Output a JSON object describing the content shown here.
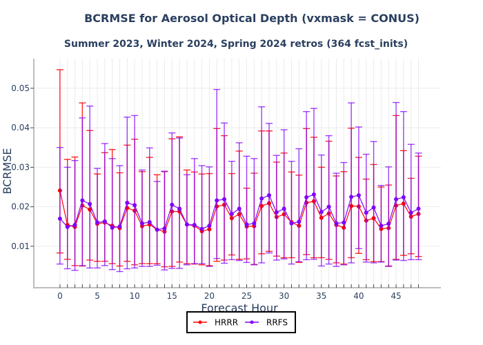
{
  "chart_data": {
    "type": "line",
    "title": "BCRMSE for Aerosol Optical Depth (vxmask = CONUS)",
    "subtitle": "Summer 2023, Winter 2024, Spring 2024 retros (364 fcst_inits)",
    "xlabel": "Forecast Hour",
    "ylabel": "BCRMSE",
    "xlim": [
      -3.5,
      51
    ],
    "ylim": [
      -0.0005,
      0.0575
    ],
    "xticks": [
      0,
      5,
      10,
      15,
      20,
      25,
      30,
      35,
      40,
      45
    ],
    "xtick_labels": [
      "0",
      "5",
      "10",
      "15",
      "20",
      "25",
      "30",
      "35",
      "40",
      "45"
    ],
    "yticks": [
      0.01,
      0.02,
      0.03,
      0.04,
      0.05
    ],
    "ytick_labels": [
      "0.01",
      "0.02",
      "0.03",
      "0.04",
      "0.05"
    ],
    "grid": true,
    "legend_position": "bottom-center",
    "x": [
      0,
      1,
      2,
      3,
      4,
      5,
      6,
      7,
      8,
      9,
      10,
      11,
      12,
      13,
      14,
      15,
      16,
      17,
      18,
      19,
      20,
      21,
      22,
      23,
      24,
      25,
      26,
      27,
      28,
      29,
      30,
      31,
      32,
      33,
      34,
      35,
      36,
      37,
      38,
      39,
      40,
      41,
      42,
      43,
      44,
      45,
      46,
      47,
      48
    ],
    "series": [
      {
        "name": "HRRR",
        "color": "#ff0000",
        "values": [
          0.0241,
          0.0154,
          0.0149,
          0.0203,
          0.0193,
          0.0157,
          0.016,
          0.0152,
          0.0146,
          0.0197,
          0.019,
          0.0151,
          0.0155,
          0.0142,
          0.0137,
          0.0188,
          0.0188,
          0.0155,
          0.0152,
          0.0138,
          0.0143,
          0.0201,
          0.0205,
          0.0171,
          0.0181,
          0.015,
          0.0151,
          0.0202,
          0.0209,
          0.0174,
          0.0181,
          0.0161,
          0.0152,
          0.021,
          0.0214,
          0.0172,
          0.0183,
          0.0154,
          0.0147,
          0.0202,
          0.0201,
          0.0165,
          0.0171,
          0.0144,
          0.0146,
          0.0203,
          0.0208,
          0.0175,
          0.0182
        ],
        "upper": [
          0.0547,
          0.032,
          0.0326,
          0.0463,
          0.0393,
          0.0283,
          0.0337,
          0.0345,
          0.0286,
          0.0356,
          0.0371,
          0.0289,
          0.0325,
          0.0281,
          0.0289,
          0.0372,
          0.0377,
          0.0293,
          0.0288,
          0.0283,
          0.0284,
          0.0398,
          0.038,
          0.0284,
          0.0341,
          0.0247,
          0.0285,
          0.0392,
          0.0392,
          0.0313,
          0.0336,
          0.0288,
          0.028,
          0.0398,
          0.0376,
          0.03,
          0.0366,
          0.0278,
          0.0289,
          0.0399,
          0.0325,
          0.027,
          0.0307,
          0.025,
          0.0255,
          0.0431,
          0.0342,
          0.0272,
          0.0328
        ],
        "lower": [
          0.0083,
          0.0067,
          0.0051,
          0.005,
          0.0065,
          0.0062,
          0.0062,
          0.0056,
          0.005,
          0.0062,
          0.0053,
          0.0056,
          0.0056,
          0.0056,
          0.0048,
          0.0049,
          0.006,
          0.0056,
          0.0055,
          0.0053,
          0.0051,
          0.0062,
          0.0065,
          0.0078,
          0.0067,
          0.0068,
          0.0054,
          0.0081,
          0.0087,
          0.0075,
          0.0071,
          0.0071,
          0.0059,
          0.0079,
          0.0071,
          0.0071,
          0.0067,
          0.0058,
          0.0055,
          0.0071,
          0.0082,
          0.0066,
          0.0061,
          0.0061,
          0.005,
          0.0067,
          0.0077,
          0.0081,
          0.0074
        ]
      },
      {
        "name": "RRFS",
        "color": "#8000ff",
        "values": [
          0.017,
          0.0149,
          0.0154,
          0.0216,
          0.0207,
          0.016,
          0.0163,
          0.0147,
          0.015,
          0.021,
          0.0204,
          0.0158,
          0.0161,
          0.0142,
          0.0145,
          0.0205,
          0.0195,
          0.0155,
          0.0154,
          0.0144,
          0.0152,
          0.0216,
          0.0219,
          0.0182,
          0.0195,
          0.0155,
          0.0158,
          0.0221,
          0.0229,
          0.0186,
          0.0195,
          0.0158,
          0.0162,
          0.0224,
          0.0231,
          0.0187,
          0.02,
          0.0158,
          0.016,
          0.0225,
          0.0229,
          0.0185,
          0.0198,
          0.0152,
          0.0157,
          0.0219,
          0.0224,
          0.0185,
          0.0195
        ],
        "upper": [
          0.035,
          0.03,
          0.0317,
          0.0425,
          0.0455,
          0.0297,
          0.036,
          0.0322,
          0.0304,
          0.0427,
          0.0431,
          0.0293,
          0.0349,
          0.0264,
          0.029,
          0.0387,
          0.0374,
          0.0281,
          0.0322,
          0.0304,
          0.0301,
          0.0497,
          0.0412,
          0.0315,
          0.0362,
          0.0328,
          0.0322,
          0.0453,
          0.0411,
          0.033,
          0.0395,
          0.0315,
          0.0347,
          0.0441,
          0.0449,
          0.0331,
          0.038,
          0.0285,
          0.0312,
          0.0463,
          0.0402,
          0.0333,
          0.0365,
          0.0254,
          0.0301,
          0.0464,
          0.0441,
          0.0358,
          0.0336
        ],
        "lower": [
          0.0055,
          0.0043,
          0.0039,
          0.0051,
          0.0045,
          0.0045,
          0.0051,
          0.0041,
          0.0036,
          0.0043,
          0.0045,
          0.0049,
          0.0049,
          0.0052,
          0.004,
          0.0044,
          0.0044,
          0.0053,
          0.0056,
          0.0056,
          0.0049,
          0.0069,
          0.0057,
          0.0066,
          0.0064,
          0.0059,
          0.0053,
          0.0058,
          0.0083,
          0.0065,
          0.0068,
          0.0055,
          0.0061,
          0.0066,
          0.0067,
          0.005,
          0.0055,
          0.0049,
          0.0053,
          0.0058,
          0.0094,
          0.006,
          0.0058,
          0.006,
          0.0049,
          0.0065,
          0.0064,
          0.0066,
          0.0066
        ]
      }
    ]
  }
}
